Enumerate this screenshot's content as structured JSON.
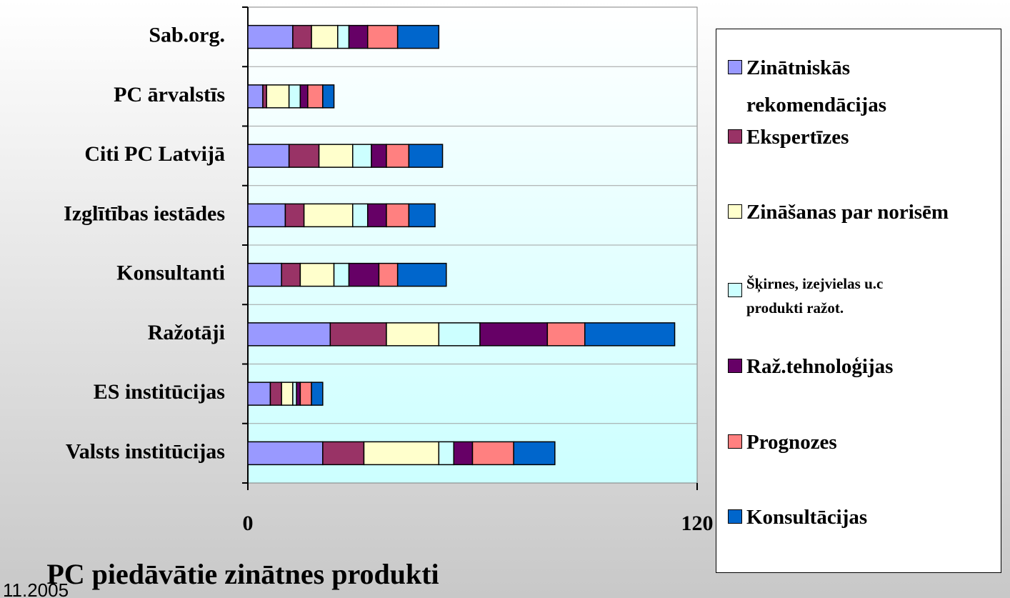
{
  "chart_data": {
    "type": "stacked_barh",
    "title": "PC piedāvātie zinātnes produkti",
    "footer": "11.2005",
    "categories": [
      "Sab.org.",
      "PC ārvalstīs",
      "Citi PC Latvijā",
      "Izglītības iestādes",
      "Konsultanti",
      "Ražotāji",
      "ES institūcijas",
      "Valsts  institūcijas"
    ],
    "series": [
      {
        "name": "Zinātniskās rekomendācijas",
        "color": "#9999ff",
        "values": [
          12,
          4,
          11,
          10,
          9,
          22,
          6,
          20
        ]
      },
      {
        "name": "Ekspertīzes",
        "color": "#993366",
        "values": [
          5,
          1,
          8,
          5,
          5,
          15,
          3,
          11
        ]
      },
      {
        "name": "Zināšanas par norisēm",
        "color": "#ffffcc",
        "values": [
          7,
          6,
          9,
          13,
          9,
          14,
          3,
          20
        ]
      },
      {
        "name": "Šķirnes, izejvielas u.c produkti ražot.",
        "color": "#ccffff",
        "values": [
          3,
          3,
          5,
          4,
          4,
          11,
          1,
          4
        ]
      },
      {
        "name": "Raž.tehnoloģijas",
        "color": "#660066",
        "values": [
          5,
          2,
          4,
          5,
          8,
          18,
          1,
          5
        ]
      },
      {
        "name": "Prognozes",
        "color": "#ff8080",
        "values": [
          8,
          4,
          6,
          6,
          5,
          10,
          3,
          11
        ]
      },
      {
        "name": "Konsultācijas",
        "color": "#0066cc",
        "values": [
          11,
          3,
          9,
          7,
          13,
          24,
          3,
          11
        ]
      }
    ],
    "xlim": [
      0,
      120
    ],
    "xticks": [
      0,
      120
    ]
  }
}
